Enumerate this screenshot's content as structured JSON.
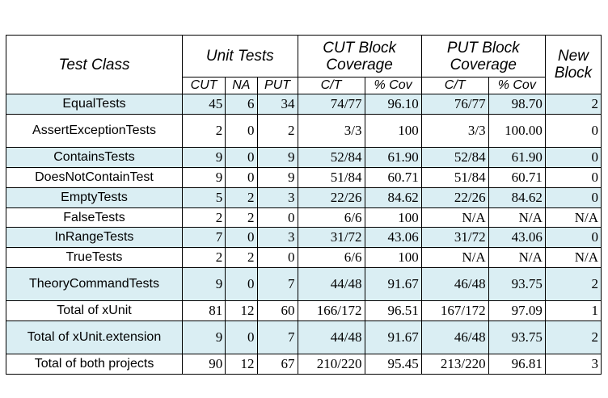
{
  "headers": {
    "test_class": "Test Class",
    "unit_tests": "Unit Tests",
    "cut_block": "CUT Block Coverage",
    "put_block": "PUT Block Coverage",
    "new_block": "New Block",
    "sub": [
      "CUT",
      "NA",
      "PUT",
      "C/T",
      "% Cov",
      "C/T",
      "% Cov"
    ]
  },
  "rows": [
    {
      "name": "EqualTests",
      "cells": [
        "45",
        "6",
        "34",
        "74/77",
        "96.10",
        "76/77",
        "98.70",
        "2"
      ],
      "shaded": true
    },
    {
      "name": "AssertExceptionTests",
      "cells": [
        "2",
        "0",
        "2",
        "3/3",
        "100",
        "3/3",
        "100.00",
        "0"
      ],
      "shaded": false
    },
    {
      "name": "ContainsTests",
      "cells": [
        "9",
        "0",
        "9",
        "52/84",
        "61.90",
        "52/84",
        "61.90",
        "0"
      ],
      "shaded": true
    },
    {
      "name": "DoesNotContainTest",
      "cells": [
        "9",
        "0",
        "9",
        "51/84",
        "60.71",
        "51/84",
        "60.71",
        "0"
      ],
      "shaded": false
    },
    {
      "name": "EmptyTests",
      "cells": [
        "5",
        "2",
        "3",
        "22/26",
        "84.62",
        "22/26",
        "84.62",
        "0"
      ],
      "shaded": true
    },
    {
      "name": "FalseTests",
      "cells": [
        "2",
        "2",
        "0",
        "6/6",
        "100",
        "N/A",
        "N/A",
        "N/A"
      ],
      "shaded": false
    },
    {
      "name": "InRangeTests",
      "cells": [
        "7",
        "0",
        "3",
        "31/72",
        "43.06",
        "31/72",
        "43.06",
        "0"
      ],
      "shaded": true
    },
    {
      "name": "TrueTests",
      "cells": [
        "2",
        "2",
        "0",
        "6/6",
        "100",
        "N/A",
        "N/A",
        "N/A"
      ],
      "shaded": false
    },
    {
      "name": "TheoryCommandTests",
      "cells": [
        "9",
        "0",
        "7",
        "44/48",
        "91.67",
        "46/48",
        "93.75",
        "2"
      ],
      "shaded": true
    },
    {
      "name": "Total of xUnit",
      "cells": [
        "81",
        "12",
        "60",
        "166/172",
        "96.51",
        "167/172",
        "97.09",
        "1"
      ],
      "shaded": false
    },
    {
      "name": "Total of xUnit.extension",
      "cells": [
        "9",
        "0",
        "7",
        "44/48",
        "91.67",
        "46/48",
        "93.75",
        "2"
      ],
      "shaded": true
    },
    {
      "name": "Total of both projects",
      "cells": [
        "90",
        "12",
        "67",
        "210/220",
        "95.45",
        "213/220",
        "96.81",
        "3"
      ],
      "shaded": false
    }
  ]
}
